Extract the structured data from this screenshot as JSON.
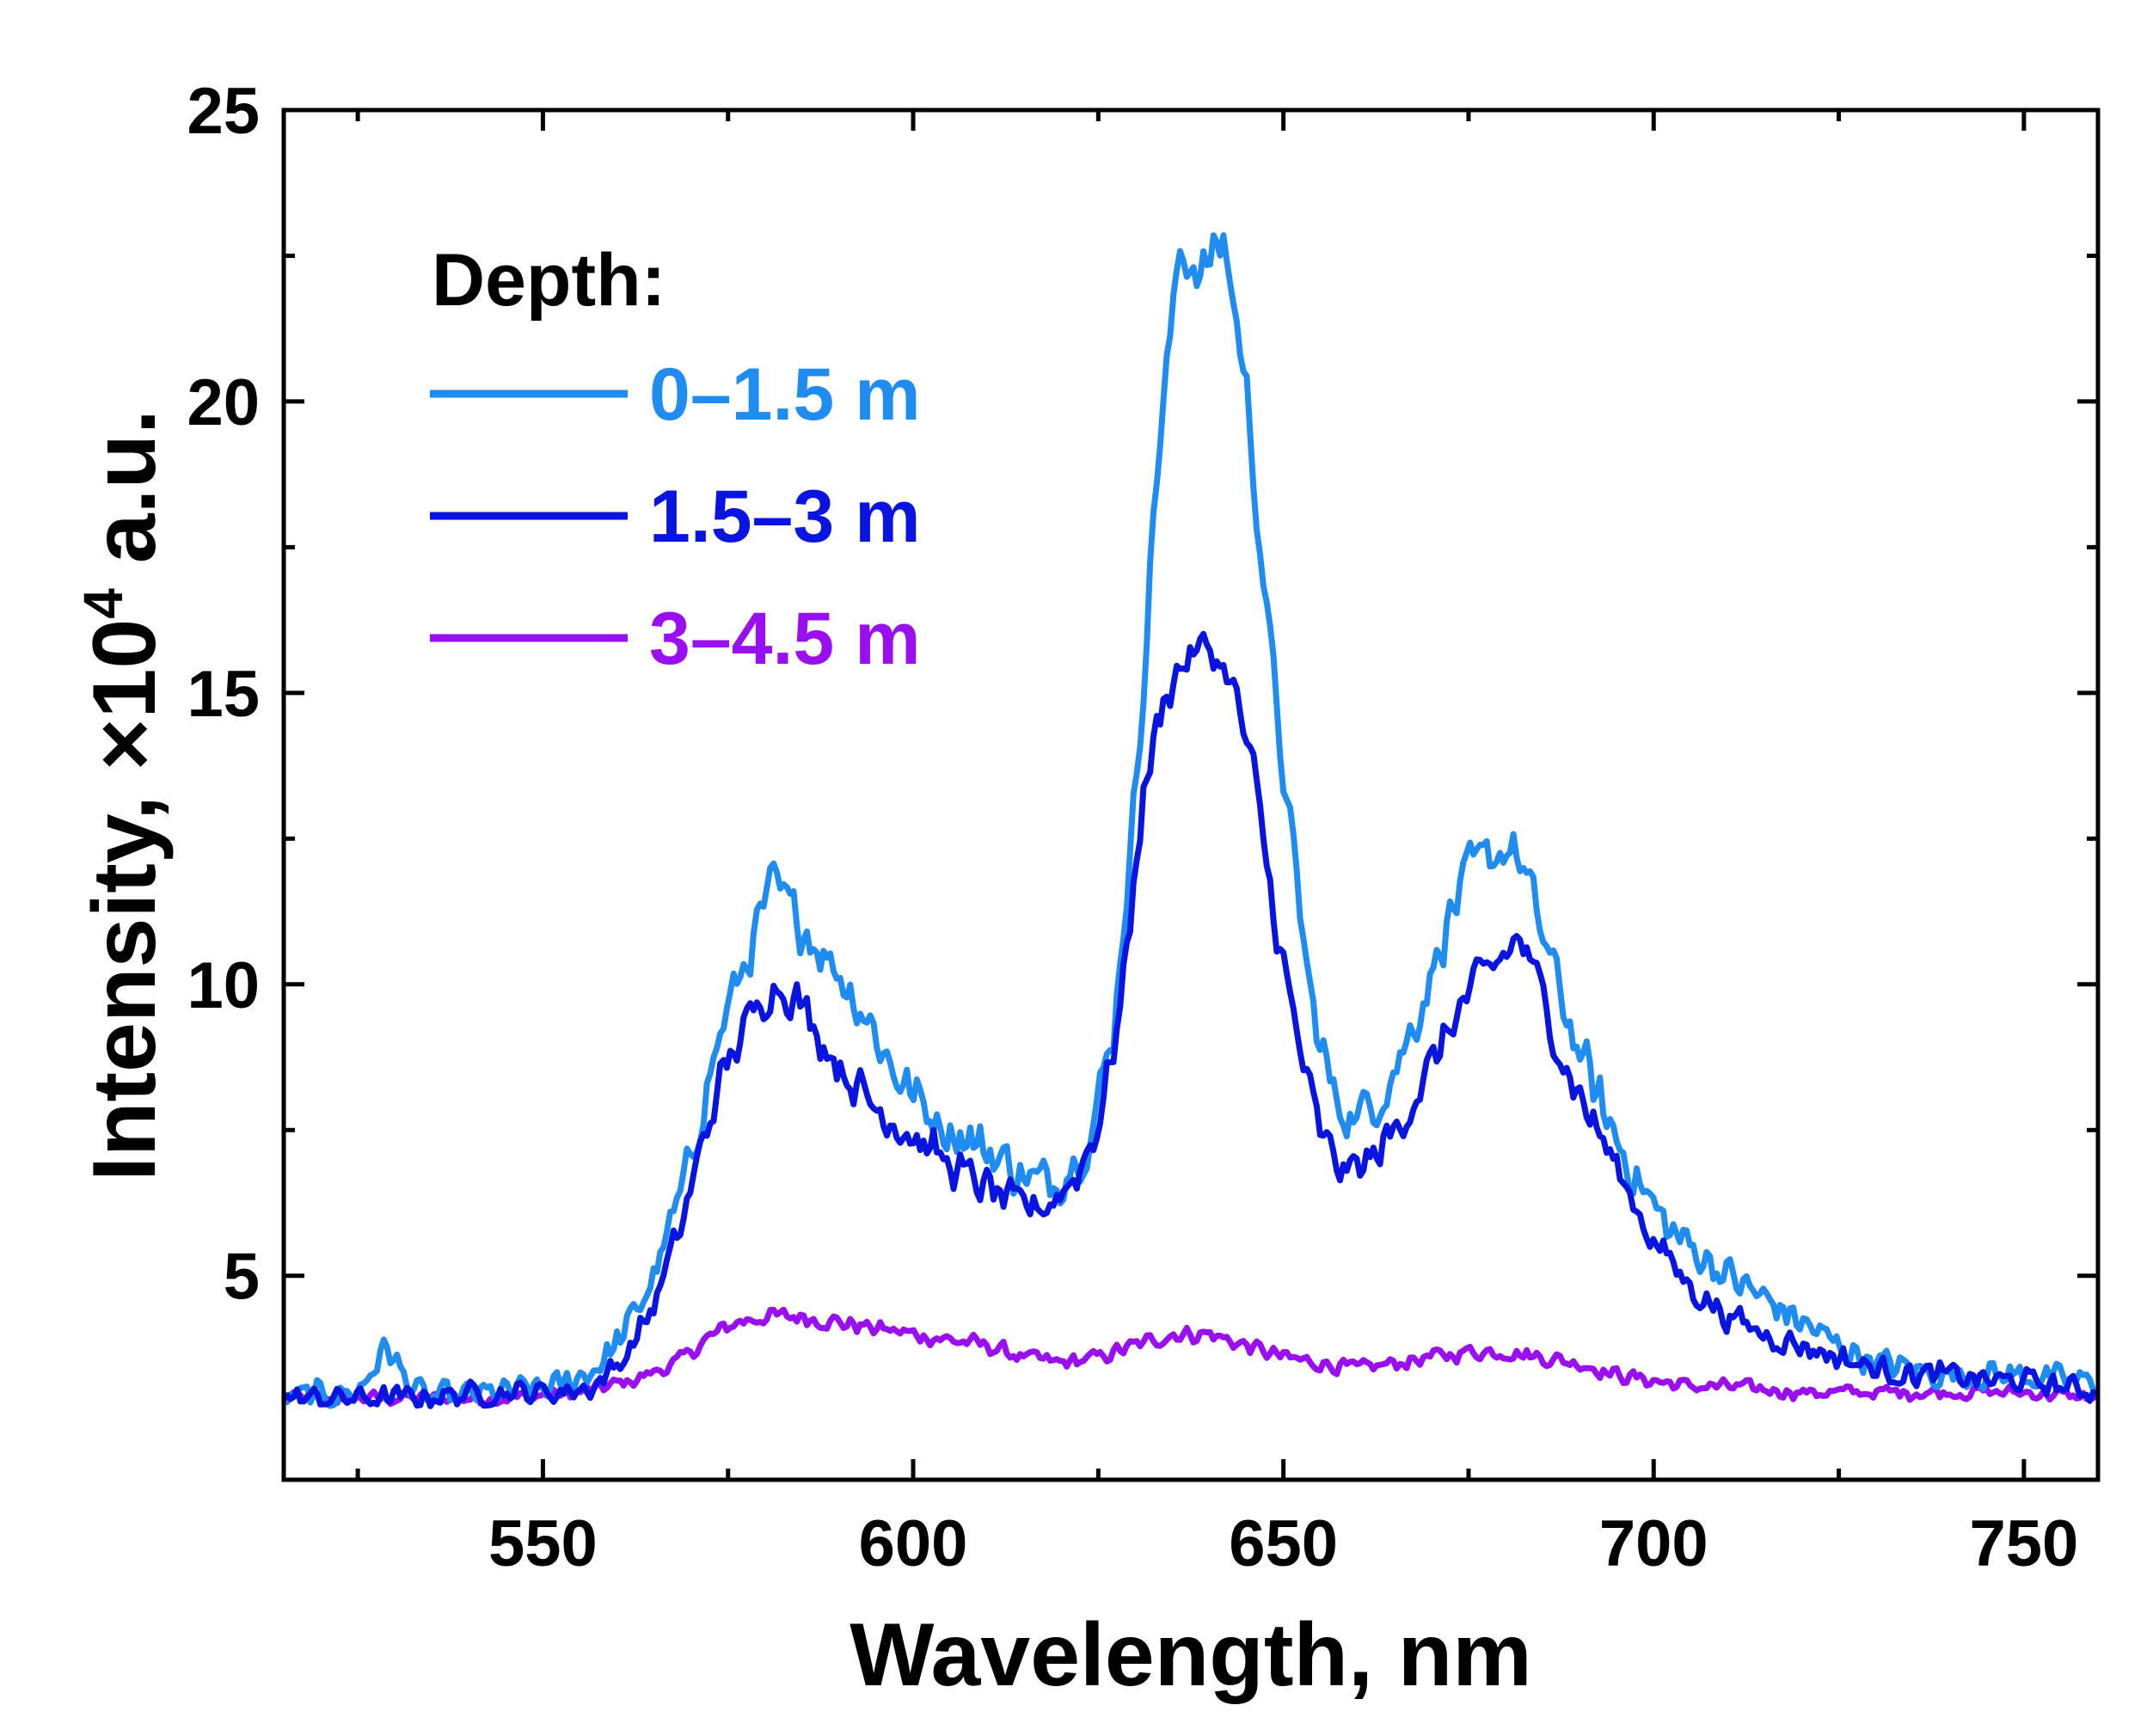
{
  "chart_data": {
    "type": "line",
    "title": "",
    "xlabel": "Wavelength, nm",
    "ylabel_main": "Intensity, ×10",
    "ylabel_exp": "4",
    "ylabel_tail": " a.u.",
    "xlim": [
      515,
      760
    ],
    "ylim": [
      1.5,
      25
    ],
    "xticks": [
      550,
      600,
      650,
      700,
      750
    ],
    "xtick_labels": [
      "550",
      "600",
      "650",
      "700",
      "750"
    ],
    "xticks_minor": [
      525,
      575,
      625,
      675,
      725
    ],
    "yticks": [
      5,
      10,
      15,
      20,
      25
    ],
    "ytick_labels": [
      "5",
      "10",
      "15",
      "20",
      "25"
    ],
    "yticks_minor": [
      7.5,
      12.5,
      17.5,
      22.5
    ],
    "grid": false,
    "legend": {
      "title": "Depth:",
      "placement": "top-left"
    },
    "series": [
      {
        "name": "0–1.5 m",
        "color": "#1e8cf0",
        "noise": 0.55,
        "points": [
          [
            515,
            2.9
          ],
          [
            525,
            3.0
          ],
          [
            527,
            3.4
          ],
          [
            529,
            3.8
          ],
          [
            531,
            3.3
          ],
          [
            534,
            2.9
          ],
          [
            545,
            3.0
          ],
          [
            552,
            3.1
          ],
          [
            557,
            3.4
          ],
          [
            561,
            4.0
          ],
          [
            565,
            5.0
          ],
          [
            569,
            6.5
          ],
          [
            572,
            8.2
          ],
          [
            575,
            9.6
          ],
          [
            578,
            10.6
          ],
          [
            581,
            11.7
          ],
          [
            584,
            11.2
          ],
          [
            587,
            10.7
          ],
          [
            590,
            10.2
          ],
          [
            594,
            9.4
          ],
          [
            597,
            8.6
          ],
          [
            600,
            8.1
          ],
          [
            604,
            7.6
          ],
          [
            608,
            7.3
          ],
          [
            612,
            7.0
          ],
          [
            616,
            6.6
          ],
          [
            620,
            6.7
          ],
          [
            624,
            7.4
          ],
          [
            627,
            9.2
          ],
          [
            630,
            13.2
          ],
          [
            633,
            19.0
          ],
          [
            636,
            22.6
          ],
          [
            639,
            22.2
          ],
          [
            642,
            22.8
          ],
          [
            645,
            20.2
          ],
          [
            648,
            16.0
          ],
          [
            651,
            12.5
          ],
          [
            654,
            9.5
          ],
          [
            657,
            8.0
          ],
          [
            660,
            7.7
          ],
          [
            663,
            8.1
          ],
          [
            666,
            8.8
          ],
          [
            669,
            9.8
          ],
          [
            672,
            11.0
          ],
          [
            675,
            11.9
          ],
          [
            678,
            12.2
          ],
          [
            681,
            12.4
          ],
          [
            684,
            11.3
          ],
          [
            687,
            10.0
          ],
          [
            690,
            8.8
          ],
          [
            694,
            7.6
          ],
          [
            698,
            6.6
          ],
          [
            702,
            5.8
          ],
          [
            706,
            5.4
          ],
          [
            710,
            5.0
          ],
          [
            715,
            4.6
          ],
          [
            720,
            4.2
          ],
          [
            725,
            3.8
          ],
          [
            730,
            3.5
          ],
          [
            735,
            3.4
          ],
          [
            740,
            3.3
          ],
          [
            745,
            3.3
          ],
          [
            750,
            3.3
          ],
          [
            755,
            3.2
          ],
          [
            760,
            3.2
          ]
        ]
      },
      {
        "name": "1.5–3 m",
        "color": "#0a14e0",
        "noise": 0.45,
        "points": [
          [
            515,
            2.9
          ],
          [
            530,
            2.9
          ],
          [
            545,
            3.0
          ],
          [
            552,
            3.0
          ],
          [
            557,
            3.1
          ],
          [
            561,
            3.6
          ],
          [
            565,
            4.5
          ],
          [
            569,
            6.0
          ],
          [
            572,
            7.5
          ],
          [
            575,
            8.7
          ],
          [
            578,
            9.4
          ],
          [
            581,
            10.0
          ],
          [
            584,
            9.8
          ],
          [
            587,
            9.2
          ],
          [
            590,
            8.6
          ],
          [
            594,
            8.0
          ],
          [
            598,
            7.6
          ],
          [
            602,
            7.2
          ],
          [
            606,
            6.8
          ],
          [
            610,
            6.5
          ],
          [
            614,
            6.2
          ],
          [
            618,
            6.2
          ],
          [
            622,
            6.7
          ],
          [
            625,
            7.6
          ],
          [
            628,
            9.6
          ],
          [
            631,
            13.2
          ],
          [
            634,
            15.0
          ],
          [
            637,
            15.6
          ],
          [
            640,
            15.8
          ],
          [
            643,
            15.2
          ],
          [
            646,
            13.6
          ],
          [
            649,
            11.0
          ],
          [
            652,
            9.0
          ],
          [
            655,
            7.4
          ],
          [
            658,
            6.8
          ],
          [
            661,
            6.9
          ],
          [
            664,
            7.3
          ],
          [
            667,
            7.9
          ],
          [
            670,
            8.6
          ],
          [
            673,
            9.4
          ],
          [
            676,
            10.0
          ],
          [
            679,
            10.4
          ],
          [
            682,
            10.8
          ],
          [
            685,
            9.8
          ],
          [
            688,
            8.6
          ],
          [
            692,
            7.6
          ],
          [
            696,
            6.6
          ],
          [
            700,
            5.6
          ],
          [
            705,
            4.8
          ],
          [
            710,
            4.3
          ],
          [
            715,
            4.0
          ],
          [
            720,
            3.8
          ],
          [
            725,
            3.6
          ],
          [
            730,
            3.4
          ],
          [
            735,
            3.3
          ],
          [
            740,
            3.3
          ],
          [
            745,
            3.2
          ],
          [
            750,
            3.2
          ],
          [
            755,
            3.1
          ],
          [
            760,
            3.0
          ]
        ]
      },
      {
        "name": "3–4.5 m",
        "color": "#9a0ef2",
        "noise": 0.28,
        "points": [
          [
            515,
            2.9
          ],
          [
            530,
            2.9
          ],
          [
            545,
            2.9
          ],
          [
            555,
            3.0
          ],
          [
            562,
            3.2
          ],
          [
            568,
            3.5
          ],
          [
            572,
            3.9
          ],
          [
            576,
            4.2
          ],
          [
            580,
            4.3
          ],
          [
            585,
            4.3
          ],
          [
            590,
            4.2
          ],
          [
            595,
            4.1
          ],
          [
            600,
            4.0
          ],
          [
            605,
            3.9
          ],
          [
            610,
            3.8
          ],
          [
            615,
            3.6
          ],
          [
            620,
            3.5
          ],
          [
            625,
            3.6
          ],
          [
            630,
            3.8
          ],
          [
            635,
            4.0
          ],
          [
            640,
            4.0
          ],
          [
            645,
            3.8
          ],
          [
            650,
            3.6
          ],
          [
            655,
            3.5
          ],
          [
            660,
            3.4
          ],
          [
            665,
            3.5
          ],
          [
            670,
            3.6
          ],
          [
            675,
            3.7
          ],
          [
            680,
            3.7
          ],
          [
            685,
            3.6
          ],
          [
            690,
            3.5
          ],
          [
            695,
            3.3
          ],
          [
            700,
            3.2
          ],
          [
            705,
            3.1
          ],
          [
            710,
            3.1
          ],
          [
            720,
            3.0
          ],
          [
            730,
            3.0
          ],
          [
            740,
            3.0
          ],
          [
            750,
            3.0
          ],
          [
            760,
            2.9
          ]
        ]
      }
    ]
  }
}
